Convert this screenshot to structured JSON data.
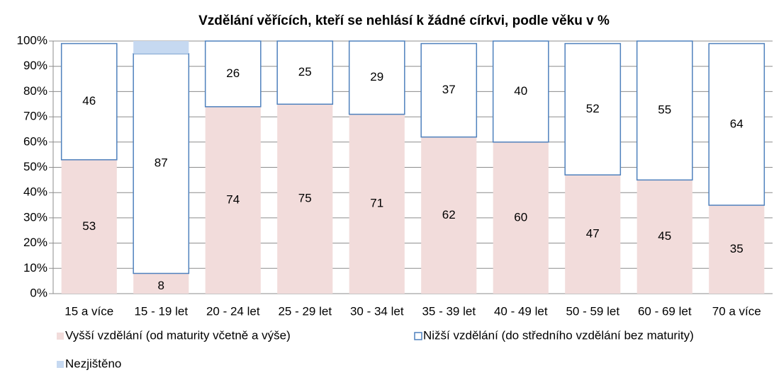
{
  "chart_data": {
    "type": "stacked_bar",
    "title": "Vzdělání věřících, kteří se nehlásí k žádné církvi, podle věku v %",
    "categories": [
      "15 a více",
      "15 - 19 let",
      "20 - 24 let",
      "25 - 29 let",
      "30 - 34 let",
      "35 - 39 let",
      "40 - 49 let",
      "50 - 59 let",
      "60 - 69 let",
      "70 a více"
    ],
    "series": [
      {
        "name": "Vyšší vzdělání (od maturity včetně a výše)",
        "color": "#f2dcdb",
        "stroke": "none",
        "data_labels": true,
        "values": [
          53,
          8,
          74,
          75,
          71,
          62,
          60,
          47,
          45,
          35
        ]
      },
      {
        "name": "Nižší vzdělání (do středního vzdělání bez maturity)",
        "color": "#ffffff",
        "stroke": "#4f81bd",
        "data_labels": true,
        "values": [
          46,
          87,
          26,
          25,
          29,
          37,
          40,
          52,
          55,
          64
        ]
      },
      {
        "name": "Nezjištěno",
        "color": "#c6d9f1",
        "stroke": "none",
        "data_labels": false,
        "values": [
          0,
          5,
          0,
          0,
          0,
          0,
          0,
          0,
          0,
          0
        ]
      }
    ],
    "ylim": [
      0,
      100
    ],
    "yticks": [
      {
        "value": 0,
        "label": "0%"
      },
      {
        "value": 10,
        "label": "10%"
      },
      {
        "value": 20,
        "label": "20%"
      },
      {
        "value": 30,
        "label": "30%"
      },
      {
        "value": 40,
        "label": "40%"
      },
      {
        "value": 50,
        "label": "50%"
      },
      {
        "value": 60,
        "label": "60%"
      },
      {
        "value": 70,
        "label": "70%"
      },
      {
        "value": 80,
        "label": "80%"
      },
      {
        "value": 90,
        "label": "90%"
      },
      {
        "value": 100,
        "label": "100%"
      }
    ],
    "grid": true,
    "legend": "bottom"
  }
}
